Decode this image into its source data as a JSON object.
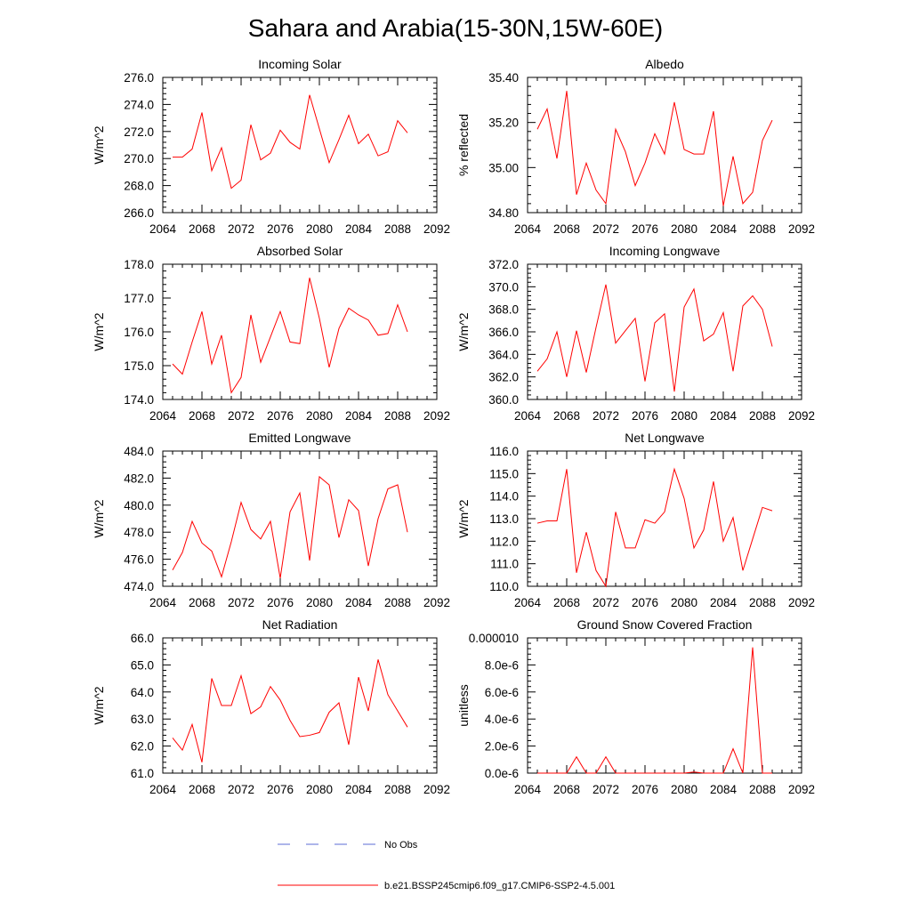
{
  "figure": {
    "title": "Sahara and Arabia(15-30N,15W-60E)",
    "x_tick_labels": [
      "2064",
      "2068",
      "2072",
      "2076",
      "2080",
      "2084",
      "2088",
      "2092"
    ],
    "legend": {
      "position": "bottom-center",
      "entries": [
        {
          "label": "No Obs",
          "style": "dashed",
          "color": "#5b6bd6"
        },
        {
          "label": "b.e21.BSSP245cmip6.f09_g17.CMIP6-SSP2-4.5.001",
          "style": "solid",
          "color": "#ff0000"
        }
      ]
    },
    "line_color": "#ff0000"
  },
  "chart_data": [
    {
      "type": "line",
      "title": "Incoming Solar",
      "ylabel": "W/m^2",
      "xlim": [
        2064,
        2092
      ],
      "ylim": [
        266,
        276
      ],
      "y_ticks": [
        "266.0",
        "268.0",
        "270.0",
        "272.0",
        "274.0",
        "276.0"
      ],
      "x": [
        2065,
        2066,
        2067,
        2068,
        2069,
        2070,
        2071,
        2072,
        2073,
        2074,
        2075,
        2076,
        2077,
        2078,
        2079,
        2080,
        2081,
        2082,
        2083,
        2084,
        2085,
        2086,
        2087,
        2088,
        2089
      ],
      "series": [
        {
          "values": [
            270.1,
            270.1,
            270.7,
            273.4,
            269.1,
            270.8,
            267.8,
            268.4,
            272.5,
            269.9,
            270.4,
            272.1,
            271.2,
            270.7,
            274.7,
            272.2,
            269.7,
            271.4,
            273.2,
            271.1,
            271.8,
            270.2,
            270.5,
            272.8,
            271.9
          ]
        }
      ]
    },
    {
      "type": "line",
      "title": "Albedo",
      "ylabel": "% reflected",
      "xlim": [
        2064,
        2092
      ],
      "ylim": [
        34.8,
        35.4
      ],
      "y_ticks": [
        "34.80",
        "35.00",
        "35.20",
        "35.40"
      ],
      "x": [
        2065,
        2066,
        2067,
        2068,
        2069,
        2070,
        2071,
        2072,
        2073,
        2074,
        2075,
        2076,
        2077,
        2078,
        2079,
        2080,
        2081,
        2082,
        2083,
        2084,
        2085,
        2086,
        2087,
        2088,
        2089
      ],
      "series": [
        {
          "values": [
            35.17,
            35.26,
            35.04,
            35.34,
            34.88,
            35.02,
            34.9,
            34.84,
            35.17,
            35.07,
            34.92,
            35.02,
            35.15,
            35.06,
            35.29,
            35.08,
            35.06,
            35.06,
            35.25,
            34.83,
            35.05,
            34.84,
            34.89,
            35.12,
            35.21
          ]
        }
      ]
    },
    {
      "type": "line",
      "title": "Absorbed Solar",
      "ylabel": "W/m^2",
      "xlim": [
        2064,
        2092
      ],
      "ylim": [
        174,
        178
      ],
      "y_ticks": [
        "174.0",
        "175.0",
        "176.0",
        "177.0",
        "178.0"
      ],
      "x": [
        2065,
        2066,
        2067,
        2068,
        2069,
        2070,
        2071,
        2072,
        2073,
        2074,
        2075,
        2076,
        2077,
        2078,
        2079,
        2080,
        2081,
        2082,
        2083,
        2084,
        2085,
        2086,
        2087,
        2088,
        2089
      ],
      "series": [
        {
          "values": [
            175.05,
            174.75,
            175.7,
            176.6,
            175.05,
            175.9,
            174.2,
            174.65,
            176.5,
            175.1,
            175.85,
            176.6,
            175.7,
            175.65,
            177.6,
            176.4,
            174.95,
            176.1,
            176.7,
            176.5,
            176.35,
            175.9,
            175.95,
            176.8,
            176.0
          ]
        }
      ]
    },
    {
      "type": "line",
      "title": "Incoming Longwave",
      "ylabel": "W/m^2",
      "xlim": [
        2064,
        2092
      ],
      "ylim": [
        360,
        372
      ],
      "y_ticks": [
        "360.0",
        "362.0",
        "364.0",
        "366.0",
        "368.0",
        "370.0",
        "372.0"
      ],
      "x": [
        2065,
        2066,
        2067,
        2068,
        2069,
        2070,
        2071,
        2072,
        2073,
        2074,
        2075,
        2076,
        2077,
        2078,
        2079,
        2080,
        2081,
        2082,
        2083,
        2084,
        2085,
        2086,
        2087,
        2088,
        2089
      ],
      "series": [
        {
          "values": [
            362.5,
            363.6,
            366.0,
            362.0,
            366.1,
            362.4,
            366.4,
            370.2,
            365.0,
            366.1,
            367.2,
            361.6,
            366.8,
            367.6,
            360.7,
            368.2,
            369.8,
            365.2,
            365.8,
            367.7,
            362.5,
            368.3,
            369.2,
            368.0,
            364.7
          ]
        }
      ]
    },
    {
      "type": "line",
      "title": "Emitted Longwave",
      "ylabel": "W/m^2",
      "xlim": [
        2064,
        2092
      ],
      "ylim": [
        474,
        484
      ],
      "y_ticks": [
        "474.0",
        "476.0",
        "478.0",
        "480.0",
        "482.0",
        "484.0"
      ],
      "x": [
        2065,
        2066,
        2067,
        2068,
        2069,
        2070,
        2071,
        2072,
        2073,
        2074,
        2075,
        2076,
        2077,
        2078,
        2079,
        2080,
        2081,
        2082,
        2083,
        2084,
        2085,
        2086,
        2087,
        2088,
        2089
      ],
      "series": [
        {
          "values": [
            475.2,
            476.5,
            478.8,
            477.2,
            476.6,
            474.7,
            477.3,
            480.2,
            478.2,
            477.5,
            478.8,
            474.6,
            479.5,
            480.9,
            475.9,
            482.1,
            481.5,
            477.6,
            480.4,
            479.6,
            475.5,
            479.0,
            481.2,
            481.5,
            478.0
          ]
        }
      ]
    },
    {
      "type": "line",
      "title": "Net Longwave",
      "ylabel": "W/m^2",
      "xlim": [
        2064,
        2092
      ],
      "ylim": [
        110,
        116
      ],
      "y_ticks": [
        "110.0",
        "111.0",
        "112.0",
        "113.0",
        "114.0",
        "115.0",
        "116.0"
      ],
      "x": [
        2065,
        2066,
        2067,
        2068,
        2069,
        2070,
        2071,
        2072,
        2073,
        2074,
        2075,
        2076,
        2077,
        2078,
        2079,
        2080,
        2081,
        2082,
        2083,
        2084,
        2085,
        2086,
        2087,
        2088,
        2089
      ],
      "series": [
        {
          "values": [
            112.8,
            112.9,
            112.9,
            115.2,
            110.6,
            112.4,
            110.7,
            110.0,
            113.3,
            111.7,
            111.7,
            112.95,
            112.8,
            113.3,
            115.2,
            113.9,
            111.7,
            112.5,
            114.65,
            112.0,
            113.05,
            110.7,
            112.1,
            113.5,
            113.35
          ]
        }
      ]
    },
    {
      "type": "line",
      "title": "Net Radiation",
      "ylabel": "W/m^2",
      "xlim": [
        2064,
        2092
      ],
      "ylim": [
        61,
        66
      ],
      "y_ticks": [
        "61.0",
        "62.0",
        "63.0",
        "64.0",
        "65.0",
        "66.0"
      ],
      "x": [
        2065,
        2066,
        2067,
        2068,
        2069,
        2070,
        2071,
        2072,
        2073,
        2074,
        2075,
        2076,
        2077,
        2078,
        2079,
        2080,
        2081,
        2082,
        2083,
        2084,
        2085,
        2086,
        2087,
        2088,
        2089
      ],
      "series": [
        {
          "values": [
            62.3,
            61.85,
            62.8,
            61.4,
            64.5,
            63.5,
            63.5,
            64.6,
            63.2,
            63.45,
            64.2,
            63.7,
            62.95,
            62.35,
            62.4,
            62.5,
            63.25,
            63.6,
            62.05,
            64.55,
            63.3,
            65.2,
            63.9,
            63.3,
            62.7
          ]
        }
      ]
    },
    {
      "type": "line",
      "title": "Ground Snow Covered Fraction",
      "ylabel": "unitless",
      "xlim": [
        2064,
        2092
      ],
      "ylim": [
        0,
        1e-05
      ],
      "y_ticks": [
        "0.0e-6",
        "2.0e-6",
        "4.0e-6",
        "6.0e-6",
        "8.0e-6",
        "0.000010"
      ],
      "x": [
        2065,
        2066,
        2067,
        2068,
        2069,
        2070,
        2071,
        2072,
        2073,
        2074,
        2075,
        2076,
        2077,
        2078,
        2079,
        2080,
        2081,
        2082,
        2083,
        2084,
        2085,
        2086,
        2087,
        2088,
        2089
      ],
      "series": [
        {
          "values": [
            0,
            0,
            0,
            0,
            1.2e-06,
            0,
            0,
            1.2e-06,
            0,
            0,
            0,
            0,
            0,
            0,
            0,
            0,
            8e-08,
            0,
            0,
            0,
            1.8e-06,
            0,
            9.3e-06,
            0,
            0
          ]
        }
      ]
    }
  ]
}
